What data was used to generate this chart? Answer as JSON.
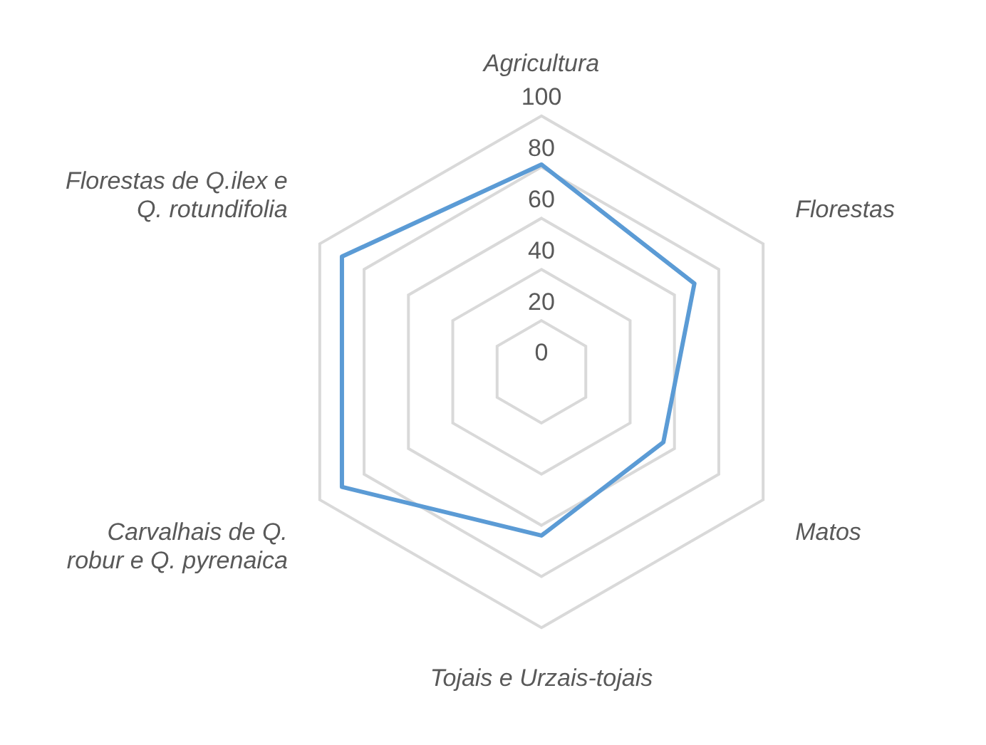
{
  "chart_data": {
    "type": "radar",
    "categories": [
      "Agricultura",
      "Florestas",
      "Matos",
      "Tojais e Urzais-tojais",
      "Carvalhais de Q. robur e Q. pyrenaica",
      "Florestas de Q.ilex e Q. rotundifolia"
    ],
    "series": [
      {
        "color": "#5b9bd5",
        "values": [
          81,
          69,
          55,
          64,
          90,
          90
        ]
      }
    ],
    "ylim": [
      0,
      100
    ],
    "yticks": [
      0,
      20,
      40,
      60,
      80,
      100
    ],
    "grid": true,
    "legend": false,
    "marker": "none"
  }
}
